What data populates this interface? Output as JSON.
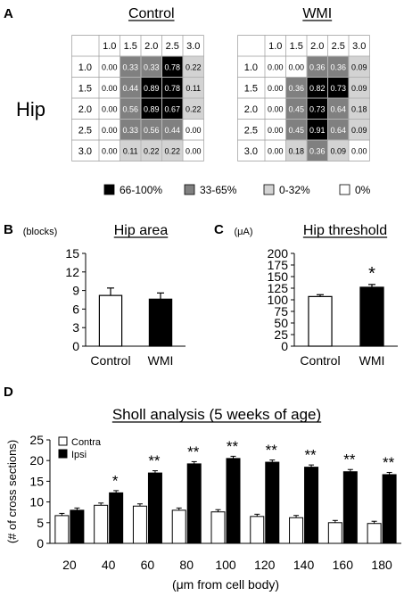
{
  "panel_labels": {
    "a": "A",
    "b": "B",
    "c": "C",
    "d": "D"
  },
  "legend_colors": {
    "high": "#000000",
    "mid": "#808080",
    "low": "#d3d3d3",
    "zero": "#ffffff"
  },
  "chart_data": [
    {
      "type": "heatmap",
      "panel": "A",
      "title": "Control",
      "row_label": "Hip",
      "columns": [
        "1.0",
        "1.5",
        "2.0",
        "2.5",
        "3.0"
      ],
      "rows": [
        "1.0",
        "1.5",
        "2.0",
        "2.5",
        "3.0"
      ],
      "values": [
        [
          "0.00",
          "0.33",
          "0.33",
          "0.78",
          "0.22"
        ],
        [
          "0.00",
          "0.44",
          "0.89",
          "0.78",
          "0.11"
        ],
        [
          "0.00",
          "0.56",
          "0.89",
          "0.67",
          "0.22"
        ],
        [
          "0.00",
          "0.33",
          "0.56",
          "0.44",
          "0.00"
        ],
        [
          "0.00",
          "0.11",
          "0.22",
          "0.22",
          "0.00"
        ]
      ]
    },
    {
      "type": "heatmap",
      "panel": "A",
      "title": "WMI",
      "columns": [
        "1.0",
        "1.5",
        "2.0",
        "2.5",
        "3.0"
      ],
      "rows": [
        "1.0",
        "1.5",
        "2.0",
        "2.5",
        "3.0"
      ],
      "values": [
        [
          "0.00",
          "0.00",
          "0.36",
          "0.36",
          "0.09"
        ],
        [
          "0.00",
          "0.36",
          "0.82",
          "0.73",
          "0.09"
        ],
        [
          "0.00",
          "0.45",
          "0.73",
          "0.64",
          "0.18"
        ],
        [
          "0.00",
          "0.45",
          "0.91",
          "0.64",
          "0.09"
        ],
        [
          "0.00",
          "0.18",
          "0.36",
          "0.09",
          "0.00"
        ]
      ],
      "legend": [
        "66-100%",
        "33-65%",
        "0-32%",
        "0%"
      ]
    },
    {
      "type": "bar",
      "panel": "B",
      "title": "Hip area",
      "unit": "(blocks)",
      "categories": [
        "Control",
        "WMI"
      ],
      "values": [
        8.2,
        7.6
      ],
      "errors": [
        1.2,
        1.0
      ],
      "ylim": [
        0,
        15
      ],
      "yticks": [
        "0",
        "3",
        "6",
        "9",
        "12",
        "15"
      ],
      "significance": [
        "",
        ""
      ]
    },
    {
      "type": "bar",
      "panel": "C",
      "title": "Hip threshold",
      "unit": "(μA)",
      "categories": [
        "Control",
        "WMI"
      ],
      "values": [
        107,
        127
      ],
      "errors": [
        4,
        6
      ],
      "ylim": [
        0,
        200
      ],
      "yticks": [
        "0",
        "25",
        "50",
        "75",
        "100",
        "125",
        "150",
        "175",
        "200"
      ],
      "significance": [
        "",
        "*"
      ]
    },
    {
      "type": "bar",
      "panel": "D",
      "title": "Sholl analysis (5 weeks of age)",
      "xlabel": "(μm from cell body)",
      "ylabel": "(# of cross sections)",
      "categories": [
        "20",
        "40",
        "60",
        "80",
        "100",
        "120",
        "140",
        "160",
        "180"
      ],
      "ylim": [
        0,
        25
      ],
      "yticks": [
        "0",
        "5",
        "10",
        "15",
        "20",
        "25"
      ],
      "series": [
        {
          "name": "Contra",
          "values": [
            6.7,
            9.2,
            9.0,
            8.0,
            7.6,
            6.5,
            6.2,
            5.0,
            4.8
          ]
        },
        {
          "name": "Ipsi",
          "values": [
            8.0,
            12.2,
            17.0,
            19.2,
            20.5,
            19.6,
            18.4,
            17.3,
            16.6
          ]
        }
      ],
      "significance": [
        "",
        "*",
        "**",
        "**",
        "**",
        "**",
        "**",
        "**",
        "**"
      ]
    }
  ]
}
